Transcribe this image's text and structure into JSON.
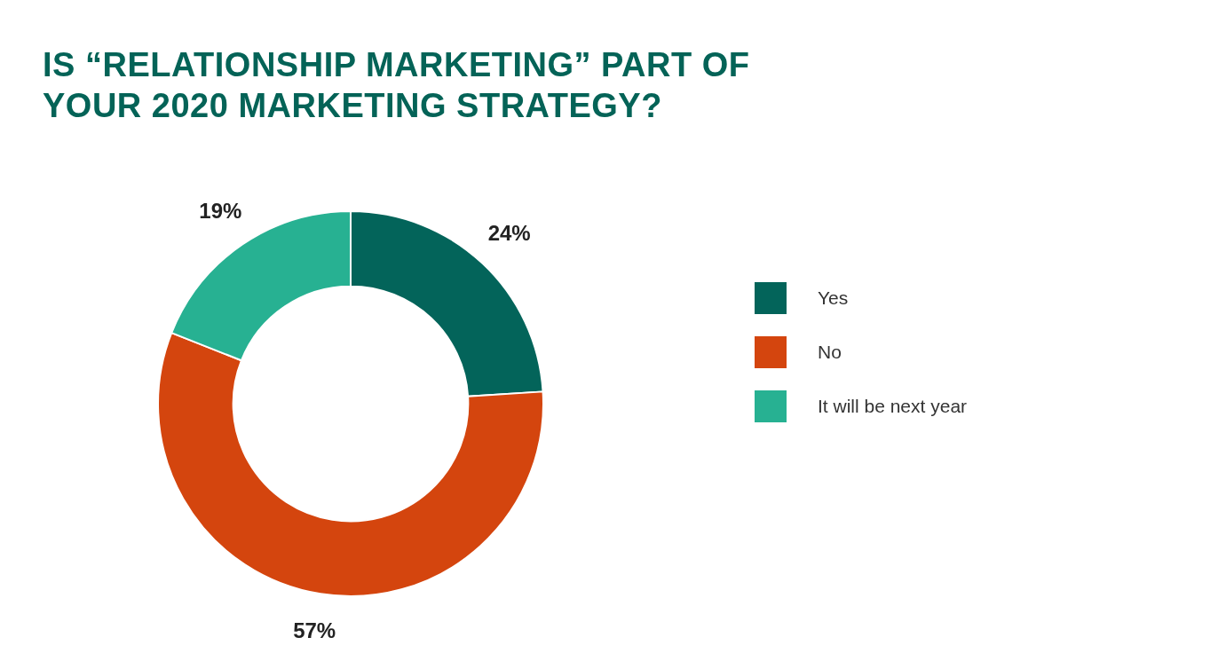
{
  "chart_data": {
    "type": "donut",
    "title": "IS “RELATIONSHIP MARKETING” PART OF YOUR 2020 MARKETING STRATEGY?",
    "categories": [
      "Yes",
      "No",
      "It will be next year"
    ],
    "values": [
      24,
      57,
      19
    ],
    "value_labels": [
      "24%",
      "57%",
      "19%"
    ],
    "colors": [
      "#03645a",
      "#d4450e",
      "#27b192"
    ],
    "legend": "right"
  }
}
